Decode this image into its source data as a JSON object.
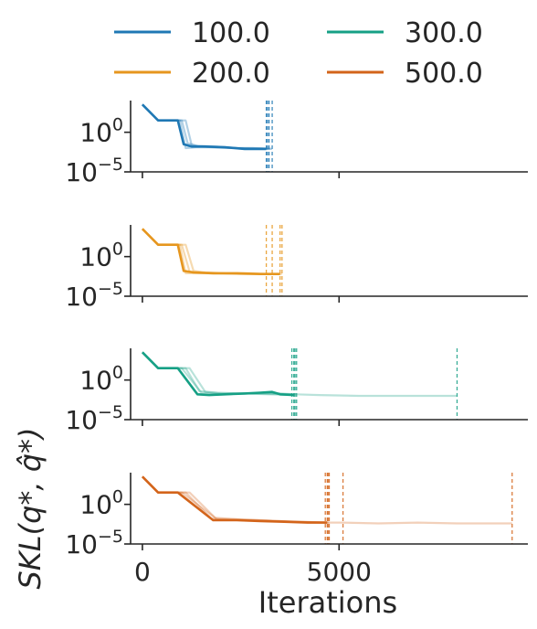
{
  "chart_data": {
    "type": "line",
    "layout": "4 stacked panels sharing x-axis, log-scale y",
    "legend": {
      "placement": "top",
      "entries": [
        {
          "label": "100.0",
          "color": "#1f78b4"
        },
        {
          "label": "300.0",
          "color": "#16a085"
        },
        {
          "label": "200.0",
          "color": "#e6961e"
        },
        {
          "label": "500.0",
          "color": "#d3641a"
        }
      ]
    },
    "xlabel": "Iterations",
    "ylabel": "SKL(q*, q̂*)",
    "xlim": [
      -300,
      9800
    ],
    "xticks": [
      {
        "value": 0,
        "label": "0"
      },
      {
        "value": 5000,
        "label": "5000"
      }
    ],
    "ylog": true,
    "ylim_log10": [
      -5,
      4
    ],
    "yticks": [
      {
        "log10": 0,
        "base": "10",
        "exp": "0"
      },
      {
        "log10": -5,
        "base": "10",
        "exp": "−5"
      }
    ],
    "grid": false,
    "panels": [
      {
        "series": "100.0",
        "color": "#1f78b4",
        "runs": [
          {
            "x": [
              0,
              400,
              900,
              1050,
              1250,
              1600,
              2100,
              2600,
              3100,
              3150
            ],
            "y": [
              3.5,
              1.5,
              1.5,
              -1.5,
              -1.8,
              -1.8,
              -1.9,
              -2.1,
              -2.1,
              -2.1
            ],
            "alpha": 1.0
          },
          {
            "x": [
              0,
              400,
              1100,
              1250,
              1450,
              1800,
              2300,
              2800,
              3200
            ],
            "y": [
              3.5,
              1.5,
              1.5,
              -1.6,
              -1.8,
              -1.9,
              -2.0,
              -2.0,
              -2.1
            ],
            "alpha": 0.35
          },
          {
            "x": [
              0,
              400,
              1000,
              1150,
              1400,
              1900,
              2400,
              2900,
              3250
            ],
            "y": [
              3.5,
              1.5,
              1.5,
              -1.4,
              -1.7,
              -1.8,
              -2.0,
              -2.1,
              -2.1
            ],
            "alpha": 0.35
          },
          {
            "x": [
              0,
              400,
              950,
              1100,
              1350,
              1800,
              2400,
              3000,
              3300
            ],
            "y": [
              3.5,
              1.5,
              1.5,
              -2.0,
              -1.9,
              -1.9,
              -2.0,
              -2.0,
              -2.1
            ],
            "alpha": 0.35
          }
        ],
        "stop_lines": [
          3150,
          3180,
          3220,
          3300
        ]
      },
      {
        "series": "200.0",
        "color": "#e6961e",
        "runs": [
          {
            "x": [
              0,
              400,
              900,
              1050,
              1300,
              1800,
              2400,
              3000,
              3500
            ],
            "y": [
              3.5,
              1.5,
              1.5,
              -1.8,
              -2.0,
              -2.1,
              -2.1,
              -2.2,
              -2.2
            ],
            "alpha": 1.0
          },
          {
            "x": [
              0,
              400,
              1000,
              1200,
              1500,
              2000,
              2600,
              3200,
              3550
            ],
            "y": [
              3.5,
              1.5,
              1.5,
              -1.9,
              -2.0,
              -2.1,
              -2.2,
              -2.2,
              -2.2
            ],
            "alpha": 0.35
          },
          {
            "x": [
              0,
              400,
              1100,
              1300,
              1600,
              2100,
              2700,
              3150
            ],
            "y": [
              3.5,
              1.5,
              1.5,
              -1.8,
              -2.0,
              -2.1,
              -2.1,
              -2.2
            ],
            "alpha": 0.35
          },
          {
            "x": [
              0,
              400,
              950,
              1100,
              1400,
              1900,
              2500,
              3300
            ],
            "y": [
              3.5,
              1.5,
              1.5,
              -2.1,
              -2.1,
              -2.1,
              -2.2,
              -2.2
            ],
            "alpha": 0.35
          }
        ],
        "stop_lines": [
          3150,
          3300,
          3500,
          3550
        ]
      },
      {
        "series": "300.0",
        "color": "#16a085",
        "runs": [
          {
            "x": [
              0,
              400,
              900,
              1400,
              1700,
              2100,
              2600,
              3000,
              3300,
              3500,
              3850
            ],
            "y": [
              3.5,
              1.5,
              1.5,
              -1.8,
              -1.9,
              -1.8,
              -1.7,
              -1.6,
              -1.5,
              -1.8,
              -1.9
            ],
            "alpha": 1.0
          },
          {
            "x": [
              0,
              400,
              1200,
              1600,
              2000,
              2500,
              3000,
              3500,
              3900,
              4500,
              5500,
              6500,
              7500,
              8000
            ],
            "y": [
              3.5,
              1.5,
              1.5,
              -1.5,
              -1.7,
              -1.7,
              -1.7,
              -1.7,
              -1.8,
              -1.9,
              -2.0,
              -2.0,
              -2.0,
              -2.0
            ],
            "alpha": 0.3
          },
          {
            "x": [
              0,
              400,
              1000,
              1500,
              2000,
              2600,
              3200,
              3880
            ],
            "y": [
              3.5,
              1.5,
              1.5,
              -1.6,
              -1.8,
              -1.7,
              -1.8,
              -1.9
            ],
            "alpha": 0.3
          },
          {
            "x": [
              0,
              400,
              1100,
              1450,
              1900,
              2500,
              3100,
              3800
            ],
            "y": [
              3.5,
              1.5,
              1.5,
              -1.4,
              -1.6,
              -1.7,
              -1.7,
              -1.8
            ],
            "alpha": 0.3
          }
        ],
        "stop_lines": [
          3800,
          3850,
          3880,
          3920,
          8000
        ]
      },
      {
        "series": "500.0",
        "color": "#d3641a",
        "runs": [
          {
            "x": [
              0,
              400,
              900,
              1800,
              2400,
              3000,
              3600,
              4200,
              4700
            ],
            "y": [
              3.5,
              1.5,
              1.5,
              -2.0,
              -2.0,
              -2.1,
              -2.2,
              -2.3,
              -2.3
            ],
            "alpha": 1.0
          },
          {
            "x": [
              0,
              400,
              1000,
              1900,
              2500,
              3200,
              3900,
              4500,
              5100,
              6000,
              7000,
              8000,
              9000,
              9400
            ],
            "y": [
              3.5,
              1.5,
              1.5,
              -1.9,
              -2.0,
              -2.1,
              -2.2,
              -2.3,
              -2.3,
              -2.4,
              -2.3,
              -2.4,
              -2.4,
              -2.4
            ],
            "alpha": 0.3
          },
          {
            "x": [
              0,
              400,
              1100,
              1750,
              2300,
              3100,
              3900,
              4650
            ],
            "y": [
              3.5,
              1.5,
              1.5,
              -1.8,
              -1.9,
              -2.0,
              -2.2,
              -2.3
            ],
            "alpha": 0.3
          },
          {
            "x": [
              0,
              400,
              1200,
              1850,
              2500,
              3300,
              4100,
              4750
            ],
            "y": [
              3.5,
              1.5,
              1.5,
              -1.7,
              -1.9,
              -2.1,
              -2.2,
              -2.3
            ],
            "alpha": 0.3
          }
        ],
        "stop_lines": [
          4650,
          4700,
          4720,
          4750,
          5100,
          9400
        ]
      }
    ]
  }
}
